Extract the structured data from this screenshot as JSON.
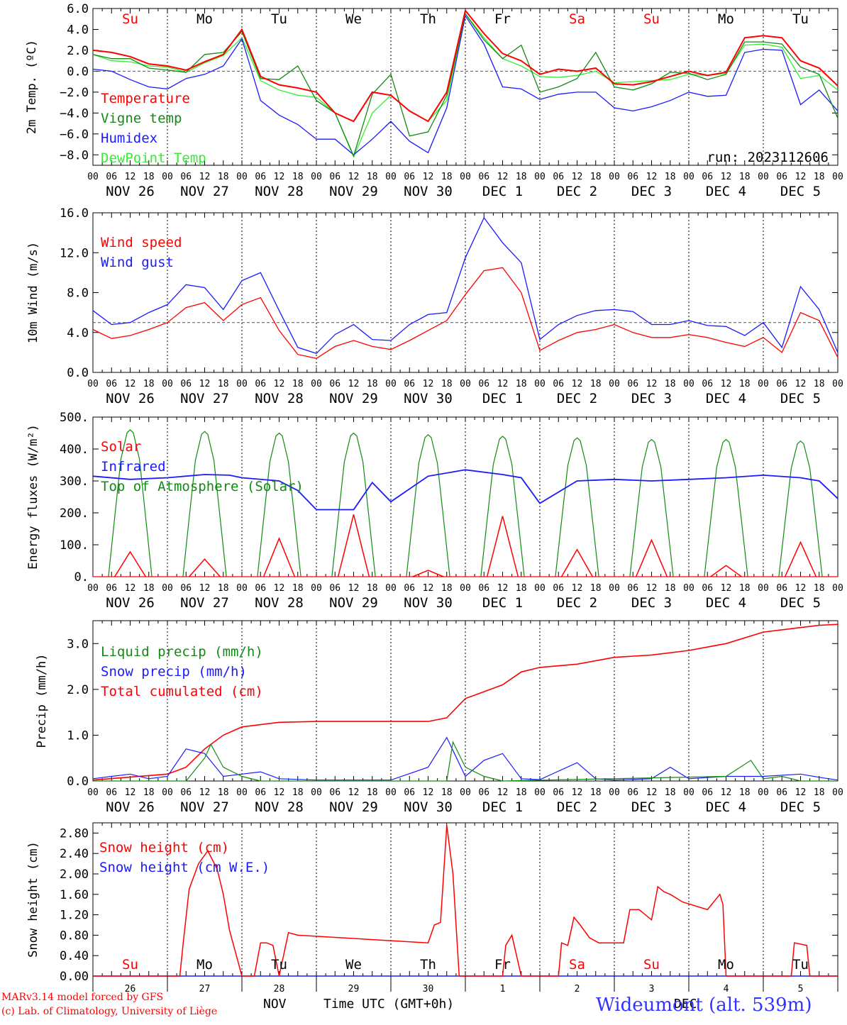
{
  "colors": {
    "red": "#ff0000",
    "green": "#138a13",
    "blue": "#1a1aff",
    "lightgreen": "#33ee33",
    "darkred": "#b00000",
    "location": "#3333ff"
  },
  "days": [
    "Su",
    "Mo",
    "Tu",
    "We",
    "Th",
    "Fr",
    "Sa",
    "Su",
    "Mo",
    "Tu"
  ],
  "day_colors": [
    "red",
    "black",
    "black",
    "black",
    "black",
    "black",
    "red",
    "red",
    "black",
    "black"
  ],
  "date_labels": [
    "NOV 26",
    "NOV 27",
    "NOV 28",
    "NOV 29",
    "NOV 30",
    "DEC  1",
    "DEC  2",
    "DEC  3",
    "DEC  4",
    "DEC  5"
  ],
  "hour_labels": [
    "00",
    "06",
    "12",
    "18"
  ],
  "last_hour_label": "00",
  "snow_date_numbers": [
    "26",
    "27",
    "28",
    "29",
    "30",
    "1",
    "2",
    "3",
    "4",
    "5"
  ],
  "footer": {
    "line1": "MARv3.14 model forced by GFS",
    "line2": "(c) Lab. of Climatology, University of Liège",
    "month_left": "NOV",
    "month_right": "DEC",
    "time_label": "Time UTC (GMT+0h)",
    "location": "Wideumont (alt. 539m)"
  },
  "chart_data": [
    {
      "type": "line",
      "ylabel": "2m Temp. (ºC)",
      "yticks": [
        "6.0",
        "4.0",
        "2.0",
        "0.0",
        "−2.0",
        "−4.0",
        "−6.0",
        "−8.0"
      ],
      "ylim": [
        -9,
        6
      ],
      "run_label": "run: 2023112606",
      "x_unit": "hours since 00 UTC NOV 26",
      "x": [
        0,
        6,
        12,
        18,
        24,
        30,
        36,
        42,
        48,
        54,
        60,
        66,
        72,
        78,
        84,
        90,
        96,
        102,
        108,
        114,
        120,
        126,
        132,
        138,
        144,
        150,
        156,
        162,
        168,
        174,
        180,
        186,
        192,
        198,
        204,
        210,
        216,
        222,
        228,
        234,
        240
      ],
      "series": [
        {
          "name": "Temperature",
          "color": "red",
          "values": [
            2.0,
            1.8,
            1.4,
            0.7,
            0.5,
            0.1,
            0.9,
            1.6,
            4.0,
            -0.5,
            -1.3,
            -1.6,
            -2.0,
            -4.0,
            -4.8,
            -2.0,
            -2.3,
            -3.8,
            -4.8,
            -2.0,
            5.8,
            3.6,
            1.7,
            1.0,
            -0.3,
            0.2,
            0.0,
            0.3,
            -1.2,
            -1.3,
            -1.0,
            -0.5,
            0.0,
            -0.4,
            -0.1,
            3.2,
            3.4,
            3.2,
            1.0,
            0.3,
            -1.4
          ]
        },
        {
          "name": "Vigne temp",
          "color": "green",
          "values": [
            1.6,
            1.2,
            1.2,
            0.3,
            0.1,
            -0.1,
            1.6,
            1.8,
            3.8,
            -0.7,
            -0.8,
            0.5,
            -2.8,
            -4.0,
            -8.1,
            -2.2,
            -0.3,
            -6.2,
            -5.8,
            -2.3,
            5.5,
            3.0,
            1.2,
            2.5,
            -2.0,
            -1.5,
            -0.7,
            1.8,
            -1.5,
            -1.8,
            -1.2,
            -0.1,
            -0.2,
            -0.8,
            -0.3,
            2.8,
            2.8,
            2.6,
            0.4,
            -0.3,
            -4.5
          ]
        },
        {
          "name": "Humidex",
          "color": "blue",
          "values": [
            0.2,
            0.0,
            -0.8,
            -1.5,
            -1.7,
            -0.7,
            -0.3,
            0.5,
            3.1,
            -2.8,
            -4.2,
            -5.1,
            -6.5,
            -6.5,
            -8.0,
            -6.5,
            -4.8,
            -6.7,
            -7.8,
            -3.5,
            5.3,
            2.6,
            -1.5,
            -1.7,
            -2.7,
            -2.2,
            -2.0,
            -2.0,
            -3.5,
            -3.8,
            -3.4,
            -2.8,
            -2.0,
            -2.4,
            -2.3,
            1.8,
            2.1,
            2.0,
            -3.2,
            -1.8,
            -3.8
          ]
        },
        {
          "name": "DewPoint Temp",
          "color": "lightgreen",
          "values": [
            1.6,
            1.0,
            0.9,
            0.5,
            0.4,
            -0.1,
            0.8,
            1.5,
            3.2,
            -0.9,
            -1.8,
            -2.3,
            -2.5,
            -4.0,
            -8.2,
            -4.0,
            -2.3,
            -3.8,
            -4.8,
            -2.8,
            5.5,
            3.2,
            1.2,
            0.5,
            -0.5,
            -0.6,
            -0.4,
            0.0,
            -1.1,
            -1.0,
            -0.9,
            -0.8,
            -0.3,
            -0.4,
            -0.2,
            2.5,
            2.6,
            2.3,
            -0.7,
            -0.4,
            -1.8
          ]
        }
      ]
    },
    {
      "type": "line",
      "ylabel": "10m Wind (m/s)",
      "yticks": [
        "16.0",
        "12.0",
        "8.0",
        "4.0",
        "0.0"
      ],
      "ylim": [
        0,
        16
      ],
      "x": [
        0,
        6,
        12,
        18,
        24,
        30,
        36,
        42,
        48,
        54,
        60,
        66,
        72,
        78,
        84,
        90,
        96,
        102,
        108,
        114,
        120,
        126,
        132,
        138,
        144,
        150,
        156,
        162,
        168,
        174,
        180,
        186,
        192,
        198,
        204,
        210,
        216,
        222,
        228,
        234,
        240
      ],
      "series": [
        {
          "name": "Wind speed",
          "color": "red",
          "values": [
            4.3,
            3.4,
            3.7,
            4.3,
            5.0,
            6.5,
            7.0,
            5.2,
            6.8,
            7.5,
            4.2,
            1.8,
            1.4,
            2.6,
            3.2,
            2.6,
            2.3,
            3.2,
            4.2,
            5.2,
            7.8,
            10.2,
            10.5,
            8.0,
            2.2,
            3.2,
            4.0,
            4.3,
            4.8,
            4.0,
            3.5,
            3.5,
            3.8,
            3.5,
            3.0,
            2.6,
            3.5,
            2.0,
            6.0,
            5.2,
            1.5
          ]
        },
        {
          "name": "Wind gust",
          "color": "blue",
          "values": [
            6.2,
            4.8,
            5.0,
            6.0,
            6.8,
            8.8,
            8.5,
            6.3,
            9.2,
            10.0,
            6.2,
            2.5,
            1.9,
            3.8,
            4.8,
            3.3,
            3.2,
            4.8,
            5.8,
            6.0,
            11.5,
            15.5,
            13.0,
            11.0,
            3.3,
            4.8,
            5.7,
            6.2,
            6.3,
            6.1,
            4.8,
            4.8,
            5.2,
            4.7,
            4.6,
            3.7,
            5.0,
            2.5,
            8.6,
            6.3,
            2.0
          ]
        }
      ]
    },
    {
      "type": "line",
      "ylabel": "Energy fluxes (W/m²)",
      "yticks": [
        "500.",
        "400.",
        "300.",
        "200.",
        "100.",
        "0."
      ],
      "ylim": [
        0,
        500
      ],
      "legend": [
        {
          "name": "Solar",
          "color": "red"
        },
        {
          "name": "Infrared",
          "color": "blue"
        },
        {
          "name": "Top of Atmosphere (Solar)",
          "color": "green"
        }
      ],
      "solar_noon_hours": [
        12,
        36,
        60,
        84,
        108,
        132,
        156,
        180,
        204,
        228
      ],
      "toa_peaks": [
        460,
        455,
        450,
        450,
        445,
        440,
        435,
        430,
        430,
        425
      ],
      "solar_peaks": [
        78,
        55,
        120,
        195,
        20,
        190,
        85,
        115,
        35,
        108
      ],
      "infrared": {
        "x": [
          0,
          12,
          24,
          36,
          44,
          48,
          60,
          66,
          72,
          84,
          90,
          96,
          108,
          120,
          132,
          138,
          144,
          156,
          168,
          180,
          192,
          204,
          216,
          228,
          234,
          240
        ],
        "values": [
          315,
          305,
          310,
          320,
          318,
          310,
          300,
          270,
          210,
          210,
          295,
          235,
          315,
          335,
          320,
          310,
          230,
          300,
          305,
          300,
          305,
          310,
          318,
          310,
          300,
          245
        ]
      }
    },
    {
      "type": "line",
      "ylabel": "Precip (mm/h)",
      "yticks": [
        "3.0",
        "2.0",
        "1.0",
        "0.0"
      ],
      "ylim": [
        0,
        3.5
      ],
      "legend": [
        {
          "name": "Liquid precip (mm/h)",
          "color": "green"
        },
        {
          "name": "Snow precip (mm/h)",
          "color": "blue"
        },
        {
          "name": "Total cumulated (cm)",
          "color": "red"
        }
      ],
      "series": [
        {
          "name": "Total cumulated (cm)",
          "color": "red",
          "x": [
            0,
            24,
            30,
            36,
            42,
            48,
            60,
            72,
            96,
            108,
            114,
            120,
            126,
            132,
            138,
            144,
            156,
            168,
            180,
            192,
            204,
            216,
            228,
            234,
            240
          ],
          "values": [
            0.02,
            0.15,
            0.3,
            0.7,
            1.0,
            1.18,
            1.28,
            1.3,
            1.3,
            1.3,
            1.38,
            1.8,
            1.95,
            2.1,
            2.38,
            2.48,
            2.55,
            2.7,
            2.75,
            2.85,
            3.0,
            3.25,
            3.35,
            3.4,
            3.42
          ]
        },
        {
          "name": "Snow precip (mm/h)",
          "color": "blue",
          "x": [
            0,
            6,
            12,
            18,
            24,
            30,
            36,
            42,
            48,
            54,
            60,
            72,
            96,
            108,
            114,
            120,
            126,
            132,
            138,
            144,
            156,
            162,
            168,
            180,
            186,
            192,
            204,
            216,
            228,
            234,
            240
          ],
          "values": [
            0.05,
            0.1,
            0.15,
            0.05,
            0.1,
            0.7,
            0.6,
            0.1,
            0.15,
            0.2,
            0.05,
            0.02,
            0.02,
            0.3,
            0.95,
            0.1,
            0.45,
            0.6,
            0.05,
            0.03,
            0.4,
            0.05,
            0.02,
            0.05,
            0.3,
            0.05,
            0.1,
            0.1,
            0.15,
            0.08,
            0.02
          ]
        },
        {
          "name": "Liquid precip (mm/h)",
          "color": "green",
          "x": [
            0,
            30,
            36,
            38,
            42,
            48,
            54,
            108,
            114,
            116,
            120,
            126,
            132,
            204,
            212,
            216,
            222,
            228,
            240
          ],
          "values": [
            0,
            0,
            0.5,
            0.8,
            0.3,
            0.1,
            0,
            0,
            0,
            0.85,
            0.3,
            0.1,
            0,
            0.1,
            0.45,
            0.05,
            0.1,
            0,
            0
          ]
        }
      ]
    },
    {
      "type": "line",
      "ylabel": "Snow height (cm)",
      "yticks": [
        "2.80",
        "2.40",
        "2.00",
        "1.60",
        "1.20",
        "0.80",
        "0.40",
        "0.00"
      ],
      "ylim": [
        0,
        3.0
      ],
      "legend": [
        {
          "name": "Snow height (cm)",
          "color": "red"
        },
        {
          "name": "Snow height (cm W.E.)",
          "color": "blue"
        }
      ],
      "series": [
        {
          "name": "Snow height (cm)",
          "color": "red",
          "x": [
            0,
            28,
            29,
            31,
            34,
            37,
            40,
            42,
            44,
            48,
            52,
            54,
            56,
            58,
            60,
            63,
            66,
            108,
            110,
            112,
            114,
            116,
            118,
            120,
            122,
            132,
            133,
            135,
            138,
            140,
            150,
            151,
            153,
            155,
            157,
            160,
            163,
            171,
            173,
            176,
            180,
            182,
            184,
            186,
            190,
            198,
            202,
            203,
            204,
            206,
            216,
            225,
            226,
            230,
            231,
            240
          ],
          "values": [
            0,
            0,
            0.6,
            1.7,
            2.2,
            2.45,
            2.1,
            1.6,
            0.9,
            0,
            0,
            0.65,
            0.65,
            0.6,
            0,
            0.85,
            0.8,
            0.65,
            1.0,
            1.05,
            2.95,
            2.0,
            0,
            0,
            0,
            0,
            0.6,
            0.8,
            0,
            0,
            0,
            0.65,
            0.6,
            1.15,
            1.0,
            0.75,
            0.65,
            0.65,
            1.3,
            1.3,
            1.1,
            1.75,
            1.65,
            1.6,
            1.45,
            1.3,
            1.6,
            1.4,
            0,
            0,
            0,
            0,
            0.65,
            0.6,
            0,
            0
          ]
        },
        {
          "name": "Snow height (cm W.E.)",
          "color": "blue",
          "x": [
            0,
            240
          ],
          "values": [
            0,
            0
          ]
        }
      ]
    }
  ]
}
